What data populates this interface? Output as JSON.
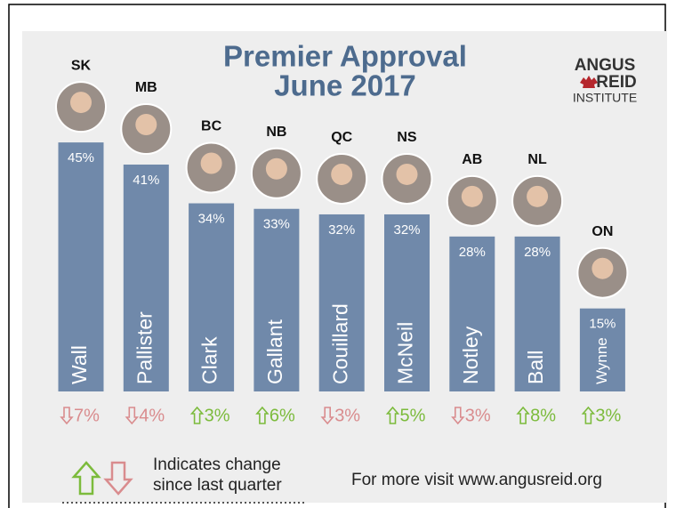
{
  "chart_data": {
    "type": "bar",
    "title": "Premier Approval",
    "subtitle": "June 2017",
    "categories": [
      "Wall",
      "Pallister",
      "Clark",
      "Gallant",
      "Couillard",
      "McNeil",
      "Notley",
      "Ball",
      "Wynne"
    ],
    "provinces": [
      "SK",
      "MB",
      "BC",
      "NB",
      "QC",
      "NS",
      "AB",
      "NL",
      "ON"
    ],
    "values": [
      45,
      41,
      34,
      33,
      32,
      32,
      28,
      28,
      15
    ],
    "value_labels": [
      "45%",
      "41%",
      "34%",
      "33%",
      "32%",
      "32%",
      "28%",
      "28%",
      "15%"
    ],
    "changes": [
      -7,
      -4,
      3,
      6,
      -3,
      5,
      -3,
      8,
      3
    ],
    "change_labels": [
      "7%",
      "4%",
      "3%",
      "6%",
      "3%",
      "5%",
      "3%",
      "8%",
      "3%"
    ],
    "color": "#7089aa",
    "up_color": "#7cbb3c",
    "down_color": "#d98c8e"
  },
  "logo": {
    "line1": "ANGUS",
    "line2": "REID",
    "line3": "INSTITUTE"
  },
  "legend": {
    "line1": "Indicates change",
    "line2": "since last quarter"
  },
  "footer": "For more visit www.angusreid.org"
}
